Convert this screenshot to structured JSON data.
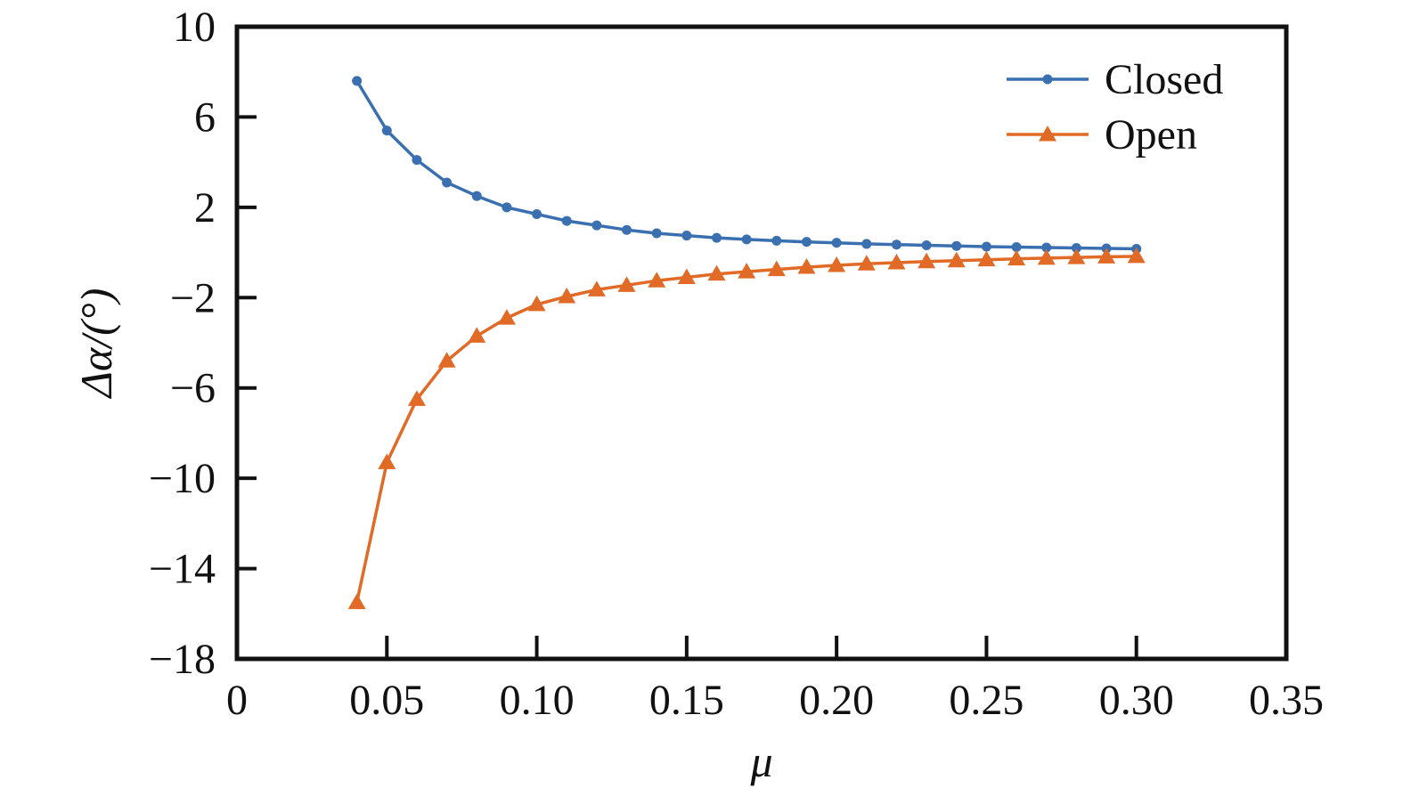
{
  "chart_data": {
    "type": "line",
    "xlabel": "μ",
    "ylabel": "Δα/(°)",
    "xlim": [
      0,
      0.35
    ],
    "ylim": [
      -18,
      10
    ],
    "x_ticks": [
      0,
      0.05,
      0.1,
      0.15,
      0.2,
      0.25,
      0.3,
      0.35
    ],
    "x_tick_labels": [
      "0",
      "0.05",
      "0.10",
      "0.15",
      "0.20",
      "0.25",
      "0.30",
      "0.35"
    ],
    "y_ticks": [
      10,
      6,
      2,
      -2,
      -6,
      -10,
      -14,
      -18
    ],
    "y_tick_labels": [
      "10",
      "6",
      "2",
      "−2",
      "−6",
      "−10",
      "−14",
      "−18"
    ],
    "minor_x_ticks": [
      0.05,
      0.1,
      0.15,
      0.2,
      0.25,
      0.3
    ],
    "legend_position": "top-right",
    "grid": false,
    "x": [
      0.04,
      0.05,
      0.06,
      0.07,
      0.08,
      0.09,
      0.1,
      0.11,
      0.12,
      0.13,
      0.14,
      0.15,
      0.16,
      0.17,
      0.18,
      0.19,
      0.2,
      0.21,
      0.22,
      0.23,
      0.24,
      0.25,
      0.26,
      0.27,
      0.28,
      0.29,
      0.3
    ],
    "series": [
      {
        "name": "Closed",
        "color": "#3a6fb0",
        "marker": "circle",
        "values": [
          7.6,
          5.4,
          4.1,
          3.1,
          2.5,
          2.0,
          1.7,
          1.4,
          1.2,
          1.0,
          0.85,
          0.75,
          0.65,
          0.58,
          0.52,
          0.47,
          0.43,
          0.38,
          0.35,
          0.32,
          0.29,
          0.26,
          0.24,
          0.22,
          0.2,
          0.18,
          0.16
        ]
      },
      {
        "name": "Open",
        "color": "#e06a26",
        "marker": "triangle",
        "values": [
          -15.5,
          -9.3,
          -6.5,
          -4.8,
          -3.7,
          -2.9,
          -2.3,
          -1.95,
          -1.65,
          -1.45,
          -1.25,
          -1.1,
          -0.95,
          -0.85,
          -0.75,
          -0.65,
          -0.57,
          -0.5,
          -0.45,
          -0.4,
          -0.36,
          -0.32,
          -0.28,
          -0.25,
          -0.22,
          -0.19,
          -0.17
        ]
      }
    ]
  }
}
